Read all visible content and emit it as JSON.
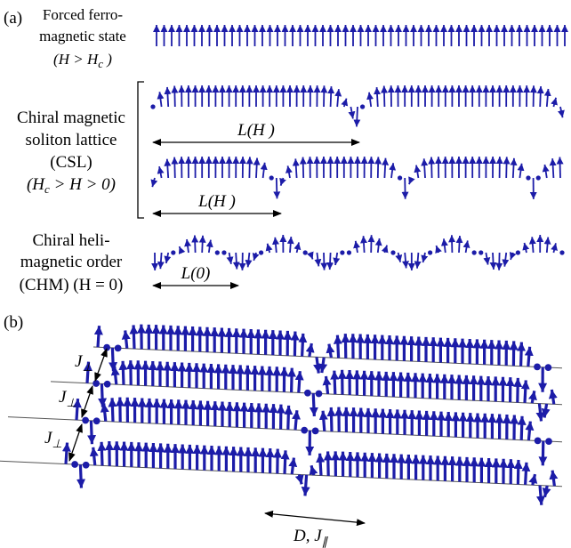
{
  "panel_a": {
    "label": "(a)",
    "ferro": [
      "Forced ferro-",
      "magnetic state"
    ],
    "ferro_cond": {
      "pre": "(H > H",
      "sub": "c",
      "post": " )"
    },
    "csl": [
      "Chiral magnetic",
      "soliton lattice",
      "(CSL)"
    ],
    "csl_cond": {
      "pre": "(H",
      "sub": "c",
      "post": " > H > 0)"
    },
    "csl_period": [
      "L(H )",
      "L(H )"
    ],
    "chm": [
      "Chiral heli-",
      "magnetic order",
      "(CHM) (H = 0)"
    ],
    "chm_period": "L(0)"
  },
  "panel_b": {
    "label": "(b)",
    "interchain": [
      {
        "main": "J",
        "sub": "⊥"
      },
      {
        "main": "J",
        "sub": "⊥"
      },
      {
        "main": "J",
        "sub": "⊥"
      }
    ],
    "intrachain": {
      "main": "D, J",
      "sub": "∥"
    }
  }
}
